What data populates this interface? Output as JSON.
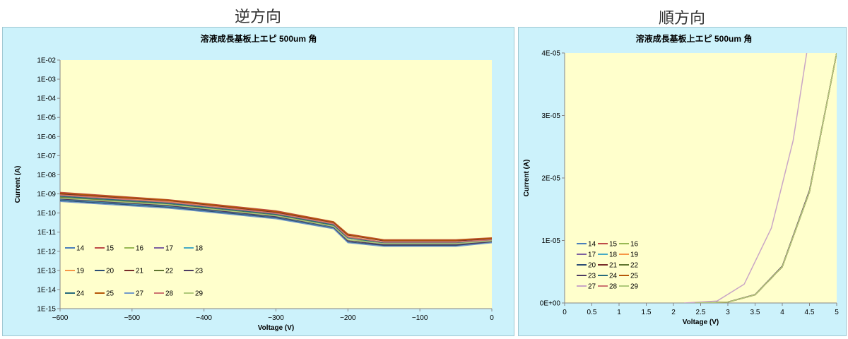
{
  "headings": {
    "left": "逆方向",
    "right": "順方向"
  },
  "chart_data": [
    {
      "type": "line",
      "title": "溶液成長基板上エピ 500um 角",
      "xlabel": "Voltage (V)",
      "ylabel": "Current (A)",
      "xlim": [
        -600,
        0
      ],
      "ylim": [
        1e-15,
        0.01
      ],
      "yscale": "log",
      "x_ticks": [
        "−600",
        "−500",
        "−400",
        "−300",
        "−200",
        "−100",
        "0"
      ],
      "y_ticks": [
        "1E-15",
        "1E-14",
        "1E-13",
        "1E-12",
        "1E-11",
        "1E-10",
        "1E-09",
        "1E-08",
        "1E-07",
        "1E-06",
        "1E-05",
        "1E-04",
        "1E-03",
        "1E-02"
      ],
      "legend_position": "bottom-left",
      "plot_bg": "#ffffcc",
      "chart_bg": "#ccf2fb",
      "series": [
        {
          "name": "14",
          "color": "#4a7ebb",
          "x": [
            -600,
            -450,
            -300,
            -220,
            -200,
            -150,
            -100,
            -50,
            0
          ],
          "y": [
            8e-10,
            3.5e-10,
            9e-11,
            2.5e-11,
            5e-12,
            3e-12,
            3e-12,
            3e-12,
            4e-12
          ]
        },
        {
          "name": "15",
          "color": "#be4b48",
          "x": [
            -600,
            -450,
            -300,
            -220,
            -200,
            -150,
            -100,
            -50,
            0
          ],
          "y": [
            1.2e-09,
            5e-10,
            1.3e-10,
            3.5e-11,
            8e-12,
            4e-12,
            4e-12,
            4e-12,
            5e-12
          ]
        },
        {
          "name": "16",
          "color": "#98b954",
          "x": [
            -600,
            -450,
            -300,
            -220,
            -200,
            -150,
            -100,
            -50,
            0
          ],
          "y": [
            7e-10,
            3e-10,
            8e-11,
            2.2e-11,
            4e-12,
            3e-12,
            3e-12,
            3e-12,
            4e-12
          ]
        },
        {
          "name": "17",
          "color": "#7d60a0",
          "x": [
            -600,
            -450,
            -300,
            -220,
            -200,
            -150,
            -100,
            -50,
            0
          ],
          "y": [
            6e-10,
            2.6e-10,
            7e-11,
            2e-11,
            4e-12,
            2.5e-12,
            2.5e-12,
            2.5e-12,
            3.5e-12
          ]
        },
        {
          "name": "18",
          "color": "#46aac5",
          "x": [
            -600,
            -450,
            -300,
            -220,
            -200,
            -150,
            -100,
            -50,
            0
          ],
          "y": [
            5e-10,
            2.2e-10,
            6e-11,
            1.8e-11,
            3e-12,
            2e-12,
            2e-12,
            2e-12,
            3e-12
          ]
        },
        {
          "name": "19",
          "color": "#f79646",
          "x": [
            -600,
            -450,
            -300,
            -220,
            -200,
            -150,
            -100,
            -50,
            0
          ],
          "y": [
            9e-10,
            4e-10,
            1e-10,
            3e-11,
            6e-12,
            3e-12,
            3e-12,
            3e-12,
            4e-12
          ]
        },
        {
          "name": "20",
          "color": "#2c4d75",
          "x": [
            -600,
            -450,
            -300,
            -220,
            -200,
            -150,
            -100,
            -50,
            0
          ],
          "y": [
            4.5e-10,
            2e-10,
            5.5e-11,
            1.6e-11,
            3e-12,
            2e-12,
            2e-12,
            2e-12,
            3e-12
          ]
        },
        {
          "name": "21",
          "color": "#772c2a",
          "x": [
            -600,
            -450,
            -300,
            -220,
            -200,
            -150,
            -100,
            -50,
            0
          ],
          "y": [
            1e-09,
            4.5e-10,
            1.1e-10,
            3.2e-11,
            7e-12,
            3.5e-12,
            3.5e-12,
            3.5e-12,
            4.5e-12
          ]
        },
        {
          "name": "22",
          "color": "#5f7530",
          "x": [
            -600,
            -450,
            -300,
            -220,
            -200,
            -150,
            -100,
            -50,
            0
          ],
          "y": [
            6.5e-10,
            2.8e-10,
            7.5e-11,
            2.1e-11,
            4e-12,
            2.5e-12,
            2.5e-12,
            2.5e-12,
            3.5e-12
          ]
        },
        {
          "name": "23",
          "color": "#4d3b62",
          "x": [
            -600,
            -450,
            -300,
            -220,
            -200,
            -150,
            -100,
            -50,
            0
          ],
          "y": [
            5.5e-10,
            2.4e-10,
            6.5e-11,
            1.9e-11,
            3.5e-12,
            2.2e-12,
            2.2e-12,
            2.2e-12,
            3.2e-12
          ]
        },
        {
          "name": "24",
          "color": "#276a7c",
          "x": [
            -600,
            -450,
            -300,
            -220,
            -200,
            -150,
            -100,
            -50,
            0
          ],
          "y": [
            7.5e-10,
            3.2e-10,
            8.5e-11,
            2.4e-11,
            5e-12,
            2.8e-12,
            2.8e-12,
            2.8e-12,
            3.8e-12
          ]
        },
        {
          "name": "25",
          "color": "#b65708",
          "x": [
            -600,
            -450,
            -300,
            -220,
            -200,
            -150,
            -100,
            -50,
            0
          ],
          "y": [
            1.1e-09,
            4.8e-10,
            1.2e-10,
            3.4e-11,
            7.5e-12,
            3.8e-12,
            3.8e-12,
            3.8e-12,
            4.8e-12
          ]
        },
        {
          "name": "27",
          "color": "#729aca",
          "x": [
            -600,
            -450,
            -300,
            -220,
            -200,
            -150,
            -100,
            -50,
            0
          ],
          "y": [
            4e-10,
            1.8e-10,
            5e-11,
            1.5e-11,
            2.8e-12,
            1.8e-12,
            1.8e-12,
            1.8e-12,
            2.8e-12
          ]
        },
        {
          "name": "28",
          "color": "#cd7371",
          "x": [
            -600,
            -450,
            -300,
            -220,
            -200,
            -150,
            -100,
            -50,
            0
          ],
          "y": [
            8.5e-10,
            3.7e-10,
            9.5e-11,
            2.7e-11,
            5.5e-12,
            3e-12,
            3e-12,
            3e-12,
            4e-12
          ]
        },
        {
          "name": "29",
          "color": "#afc97a",
          "x": [
            -600,
            -450,
            -300,
            -220,
            -200,
            -150,
            -100,
            -50,
            0
          ],
          "y": [
            6e-10,
            2.7e-10,
            7.2e-11,
            2e-11,
            4e-12,
            2.5e-12,
            2.5e-12,
            2.5e-12,
            3.5e-12
          ]
        }
      ]
    },
    {
      "type": "line",
      "title": "溶液成長基板上エピ 500um 角",
      "xlabel": "Voltage (V)",
      "ylabel": "Current (A)",
      "xlim": [
        0,
        5
      ],
      "ylim": [
        0,
        4e-05
      ],
      "yscale": "linear",
      "x_ticks": [
        "0",
        "0.5",
        "1",
        "1.5",
        "2",
        "2.5",
        "3",
        "3.5",
        "4",
        "4.5",
        "5"
      ],
      "y_ticks": [
        "0E+00",
        "1E-05",
        "2E-05",
        "3E-05",
        "4E-05"
      ],
      "legend_position": "bottom-left",
      "plot_bg": "#ffffcc",
      "chart_bg": "#ccf2fb",
      "series": [
        {
          "name": "14",
          "color": "#4a7ebb",
          "x": [
            2.4,
            3,
            3.5,
            4,
            4.5,
            5
          ],
          "y": [
            0,
            1.5e-07,
            1.3e-06,
            5.8e-06,
            1.78e-05,
            4e-05
          ]
        },
        {
          "name": "15",
          "color": "#be4b48",
          "x": [
            2.4,
            3,
            3.5,
            4,
            4.5,
            5
          ],
          "y": [
            0,
            1.5e-07,
            1.3e-06,
            5.8e-06,
            1.78e-05,
            4e-05
          ]
        },
        {
          "name": "16",
          "color": "#98b954",
          "x": [
            2.4,
            3,
            3.5,
            4,
            4.5,
            5
          ],
          "y": [
            0,
            1.5e-07,
            1.3e-06,
            5.8e-06,
            1.78e-05,
            4e-05
          ]
        },
        {
          "name": "17",
          "color": "#7d60a0",
          "x": [
            2.4,
            3,
            3.5,
            4,
            4.5,
            5
          ],
          "y": [
            0,
            1.6e-07,
            1.35e-06,
            5.9e-06,
            1.8e-05,
            4e-05
          ]
        },
        {
          "name": "18",
          "color": "#46aac5",
          "x": [
            2.4,
            3,
            3.5,
            4,
            4.5,
            5
          ],
          "y": [
            0,
            1.5e-07,
            1.3e-06,
            5.8e-06,
            1.78e-05,
            4e-05
          ]
        },
        {
          "name": "19",
          "color": "#f79646",
          "x": [
            2.4,
            3,
            3.5,
            4,
            4.5,
            5
          ],
          "y": [
            0,
            1.5e-07,
            1.3e-06,
            5.8e-06,
            1.78e-05,
            4e-05
          ]
        },
        {
          "name": "20",
          "color": "#2c4d75",
          "x": [
            2.4,
            3,
            3.5,
            4,
            4.5,
            5
          ],
          "y": [
            0,
            1.5e-07,
            1.3e-06,
            5.8e-06,
            1.78e-05,
            4e-05
          ]
        },
        {
          "name": "21",
          "color": "#772c2a",
          "x": [
            2.4,
            3,
            3.5,
            4,
            4.5,
            5
          ],
          "y": [
            0,
            1.5e-07,
            1.3e-06,
            5.8e-06,
            1.78e-05,
            4e-05
          ]
        },
        {
          "name": "22",
          "color": "#5f7530",
          "x": [
            2.4,
            3,
            3.5,
            4,
            4.5,
            5
          ],
          "y": [
            0,
            1.5e-07,
            1.3e-06,
            5.8e-06,
            1.78e-05,
            4e-05
          ]
        },
        {
          "name": "23",
          "color": "#4d3b62",
          "x": [
            2.4,
            3,
            3.5,
            4,
            4.5,
            5
          ],
          "y": [
            0,
            1.6e-07,
            1.35e-06,
            5.9e-06,
            1.8e-05,
            4e-05
          ]
        },
        {
          "name": "24",
          "color": "#276a7c",
          "x": [
            2.4,
            3,
            3.5,
            4,
            4.5,
            5
          ],
          "y": [
            0,
            1.5e-07,
            1.3e-06,
            5.8e-06,
            1.78e-05,
            4e-05
          ]
        },
        {
          "name": "25",
          "color": "#b65708",
          "x": [
            2.4,
            3,
            3.5,
            4,
            4.5,
            5
          ],
          "y": [
            0,
            1.5e-07,
            1.3e-06,
            5.8e-06,
            1.78e-05,
            4e-05
          ]
        },
        {
          "name": "27",
          "color": "#c9a6c6",
          "x": [
            2.2,
            2.8,
            3.3,
            3.8,
            4.2,
            4.45
          ],
          "y": [
            0,
            3e-07,
            3e-06,
            1.2e-05,
            2.6e-05,
            4e-05
          ]
        },
        {
          "name": "28",
          "color": "#cd7371",
          "x": [
            2.4,
            3,
            3.5,
            4,
            4.5,
            5
          ],
          "y": [
            0,
            1.5e-07,
            1.3e-06,
            5.8e-06,
            1.78e-05,
            4e-05
          ]
        },
        {
          "name": "29",
          "color": "#afc97a",
          "x": [
            2.4,
            3,
            3.5,
            4,
            4.5,
            5
          ],
          "y": [
            0,
            1.5e-07,
            1.3e-06,
            5.8e-06,
            1.78e-05,
            4e-05
          ]
        }
      ]
    }
  ]
}
